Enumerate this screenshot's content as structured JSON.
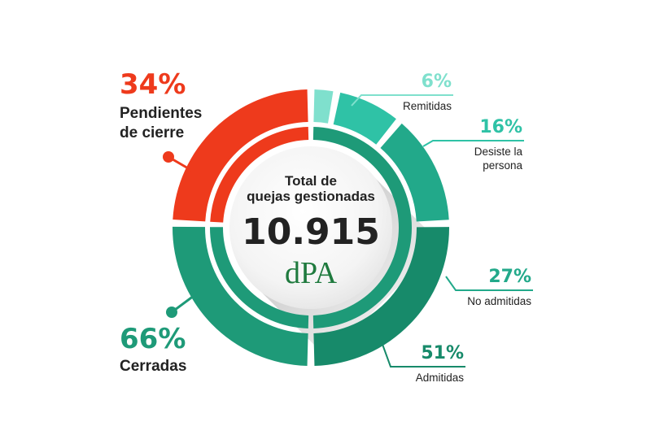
{
  "chart_data": {
    "type": "pie",
    "title": "",
    "center": {
      "caption": [
        "Total de",
        "quejas gestionadas"
      ],
      "total": "10.915",
      "logo_text": "dPA"
    },
    "groups": [
      {
        "name_lines": [
          "Pendientes",
          "de cierre"
        ],
        "value": 34,
        "pct_label": "34%",
        "color": "#ee3a1c"
      },
      {
        "name_lines": [
          "Cerradas"
        ],
        "value": 66,
        "pct_label": "66%",
        "color": "#1e9a78"
      }
    ],
    "breakdown": [
      {
        "name_lines": [
          "Remitidas"
        ],
        "value": 6,
        "pct_label": "6%",
        "color": "#7fe0cd"
      },
      {
        "name_lines": [
          "Desiste la",
          "persona"
        ],
        "value": 16,
        "pct_label": "16%",
        "color": "#2fc2a6"
      },
      {
        "name_lines": [
          "No admitidas"
        ],
        "value": 27,
        "pct_label": "27%",
        "color": "#22a98a"
      },
      {
        "name_lines": [
          "Admitidas"
        ],
        "value": 51,
        "pct_label": "51%",
        "color": "#178a6a"
      }
    ],
    "colors": {
      "text": "#222222",
      "group_ring_gap": "#ffffff",
      "center_fill": "#f2f2f2"
    }
  }
}
